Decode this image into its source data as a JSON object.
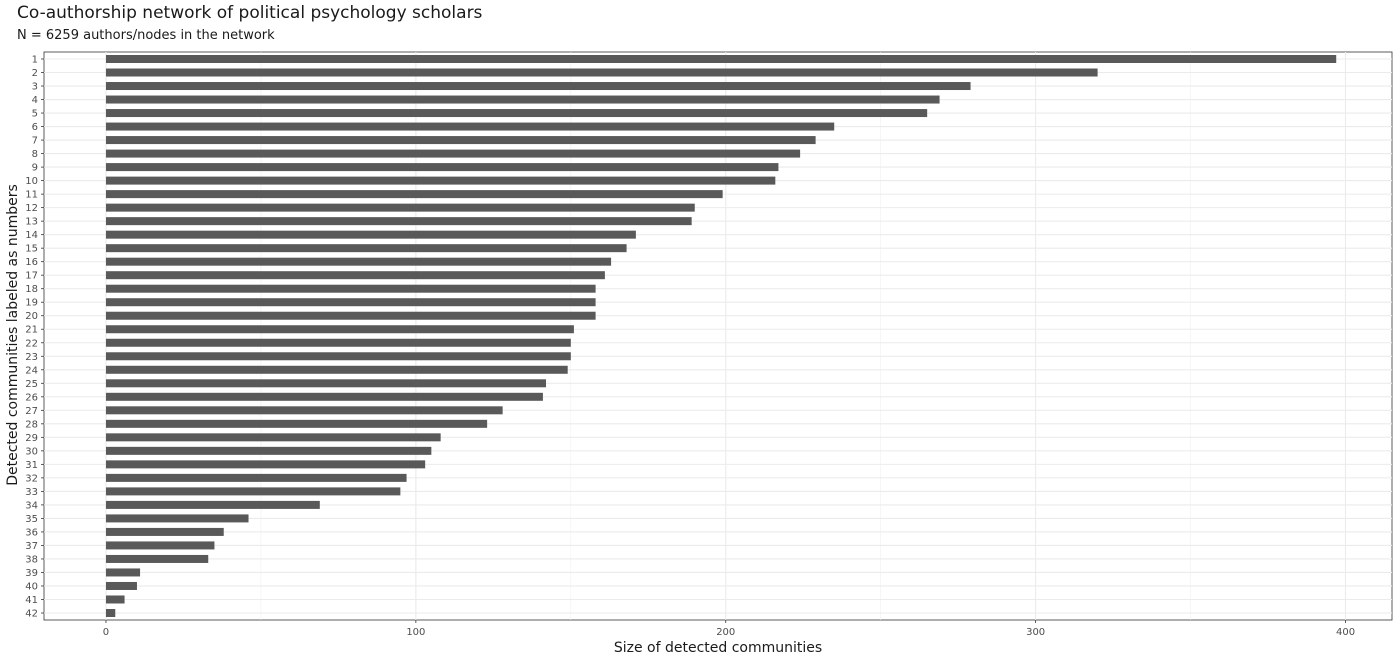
{
  "chart_data": {
    "type": "bar",
    "orientation": "horizontal",
    "title": "Co-authorship network of political psychology scholars",
    "subtitle": "N = 6259 authors/nodes in the network",
    "xlabel": "Size of detected communities",
    "ylabel": "Detected communities labeled as numbers",
    "xlim": [
      -20,
      415
    ],
    "x_ticks": [
      0,
      100,
      200,
      300,
      400
    ],
    "grid": true,
    "bar_color": "#595959",
    "categories": [
      "1",
      "2",
      "3",
      "4",
      "5",
      "6",
      "7",
      "8",
      "9",
      "10",
      "11",
      "12",
      "13",
      "14",
      "15",
      "16",
      "17",
      "18",
      "19",
      "20",
      "21",
      "22",
      "23",
      "24",
      "25",
      "26",
      "27",
      "28",
      "29",
      "30",
      "31",
      "32",
      "33",
      "34",
      "35",
      "36",
      "37",
      "38",
      "39",
      "40",
      "41",
      "42"
    ],
    "values": [
      397,
      320,
      279,
      269,
      265,
      235,
      229,
      224,
      217,
      216,
      199,
      190,
      189,
      171,
      168,
      163,
      161,
      158,
      158,
      158,
      151,
      150,
      150,
      149,
      142,
      141,
      128,
      123,
      108,
      105,
      103,
      97,
      95,
      69,
      46,
      38,
      35,
      33,
      11,
      10,
      6,
      3
    ]
  }
}
